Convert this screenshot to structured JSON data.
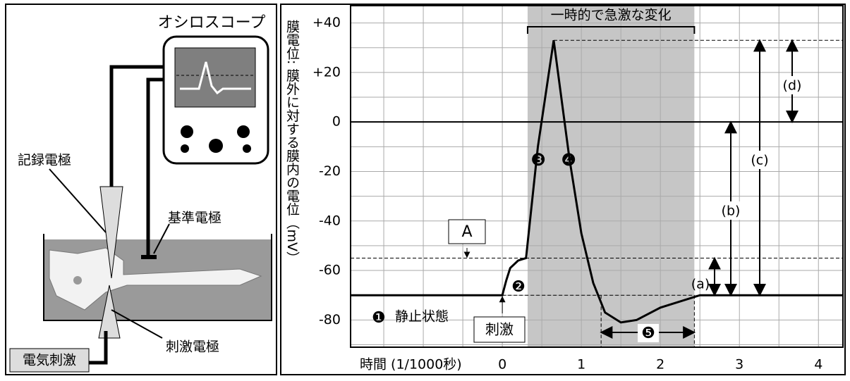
{
  "chart_data": {
    "type": "line",
    "x_label": "時間 (1/1000秒)",
    "y_label": "膜電位: 膜外に対する膜内の電位（mV）",
    "x": [
      -1.92,
      0,
      0.05,
      0.1,
      0.2,
      0.3,
      0.45,
      0.65,
      0.85,
      1.0,
      1.15,
      1.3,
      1.5,
      1.7,
      2.0,
      2.5,
      4.31
    ],
    "values": [
      -70,
      -70,
      -64,
      -59,
      -56,
      -55,
      -10,
      33,
      -15,
      -45,
      -65,
      -77,
      -81,
      -80,
      -75,
      -70,
      -70
    ],
    "color": "#000000",
    "xlim": [
      -1.92,
      4.31
    ],
    "ylim": [
      -91,
      47
    ],
    "xticks": [
      0,
      1,
      2,
      3,
      4
    ],
    "yticks": [
      {
        "value": 40,
        "label": "+40"
      },
      {
        "value": 20,
        "label": "+20"
      },
      0,
      -20,
      -40,
      -60,
      -80
    ],
    "xgrid": [
      -1.5,
      -1,
      -0.5,
      0,
      0.5,
      1,
      1.5,
      2,
      2.5,
      3,
      3.5,
      4
    ],
    "ygrid": [
      -90,
      -80,
      -70,
      -60,
      -50,
      -40,
      -30,
      -20,
      -10,
      0,
      10,
      20,
      30,
      40
    ],
    "grid": true,
    "shade": [
      0.32,
      2.43
    ],
    "threshold": -55,
    "peak": 33,
    "rest": -70,
    "recovery": 1.25,
    "annotations": {
      "change": "一時的で急激な変化",
      "a_box": "A",
      "a": "(a)",
      "b": "(b)",
      "c": "(c)",
      "d": "(d)",
      "n1": "❶",
      "rest_label": "静止状態",
      "n2": "❷",
      "n3": "❸",
      "n4": "❹",
      "n5": "❺",
      "stimulus": "刺激"
    }
  },
  "illustration": {
    "oscilloscope": "オシロスコープ",
    "recording": "記録電極",
    "reference": "基準電極",
    "stimulating": "刺激電極",
    "electric": "電気刺激"
  }
}
